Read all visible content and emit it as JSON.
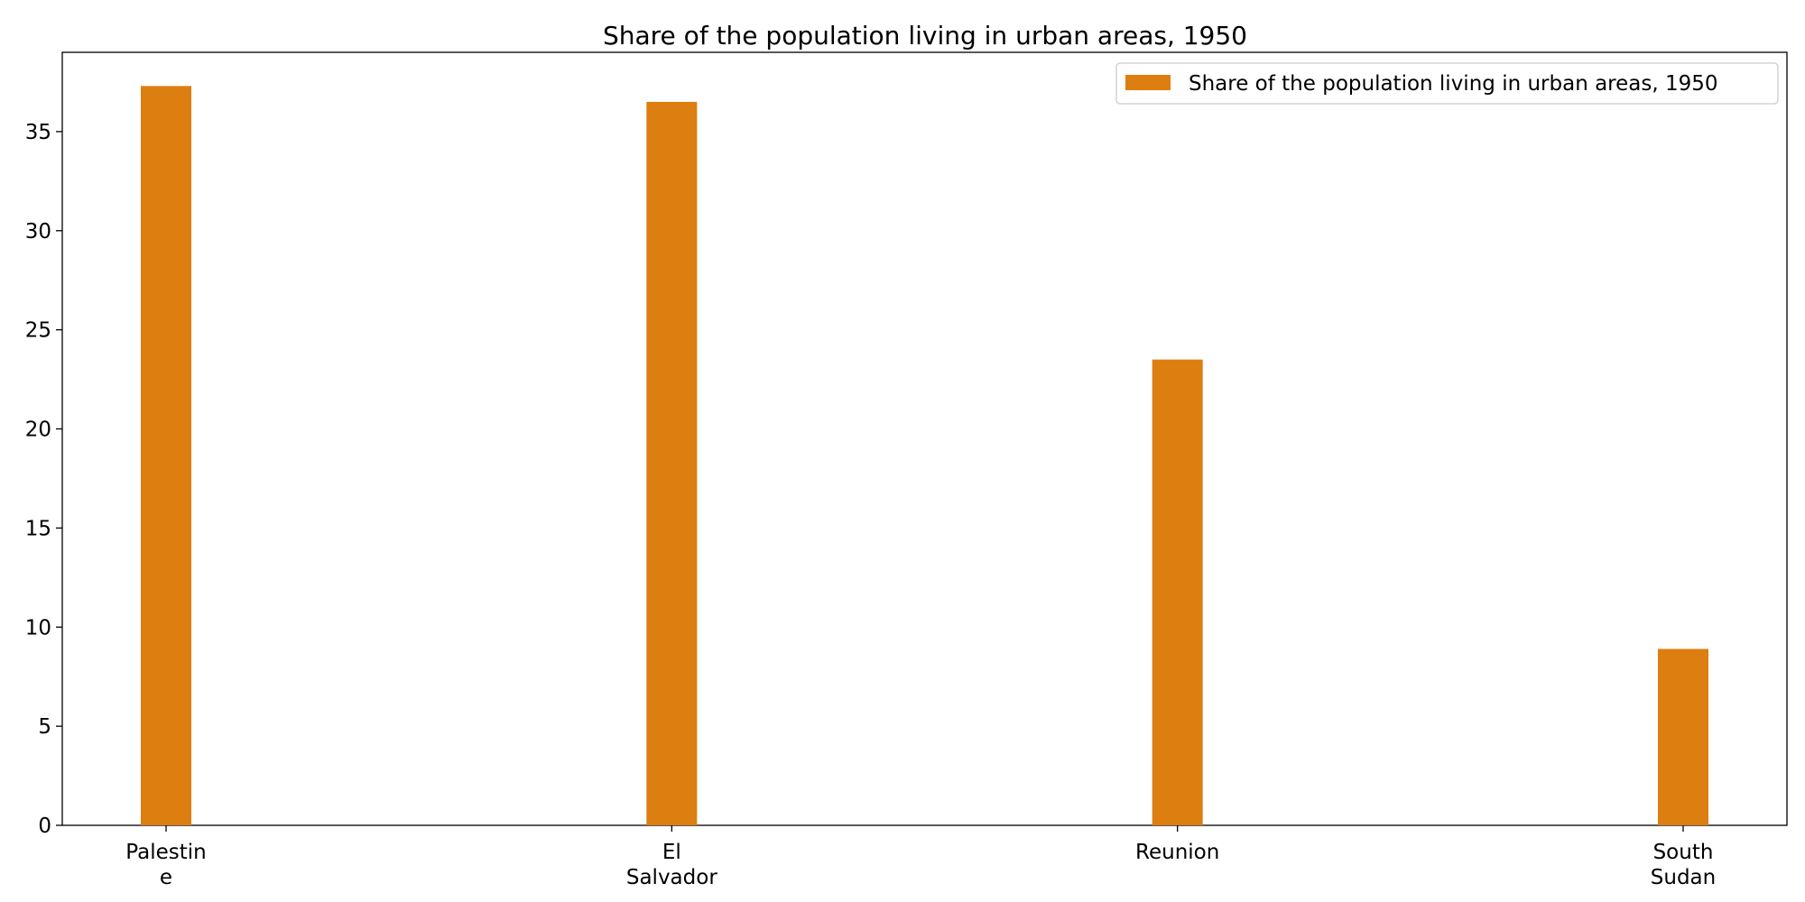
{
  "chart_data": {
    "type": "bar",
    "title": "Share of the population living in urban areas, 1950",
    "categories": [
      "Palestine",
      "El Salvador",
      "Reunion",
      "South Sudan"
    ],
    "category_tick_lines": [
      [
        "Palestin",
        "e"
      ],
      [
        "El",
        "Salvador"
      ],
      [
        "Reunion"
      ],
      [
        "South",
        "Sudan"
      ]
    ],
    "series": [
      {
        "name": "Share of the population living in urban areas, 1950",
        "values": [
          37.3,
          36.5,
          23.5,
          8.9
        ],
        "color": "#dd7e10"
      }
    ],
    "xlabel": "",
    "ylabel": "",
    "ylim": [
      0,
      39
    ],
    "yticks": [
      0,
      5,
      10,
      15,
      20,
      25,
      30,
      35
    ],
    "grid": false,
    "legend_position": "top-right"
  }
}
